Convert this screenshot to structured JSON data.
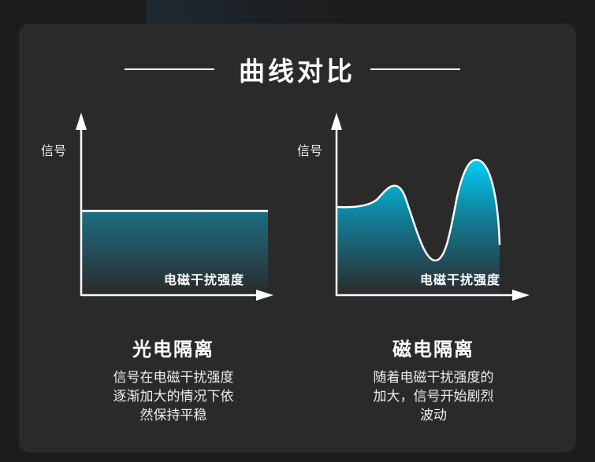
{
  "title": "曲线对比",
  "colors": {
    "background": "#1c1c1c",
    "card": "#2a2a2a",
    "accent": "#00c8f0",
    "fill_dark": "#2a2a2a",
    "line": "#ffffff"
  },
  "left": {
    "y_label": "信号",
    "x_label": "电磁干扰强度",
    "heading": "光电隔离",
    "description": [
      "信号在电磁干扰强度",
      "逐渐加大的情况下依",
      "然保持平稳"
    ]
  },
  "right": {
    "y_label": "信号",
    "x_label": "电磁干扰强度",
    "heading": "磁电隔离",
    "description": [
      "随着电磁干扰强度的",
      "加大，信号开始剧烈",
      "波动"
    ]
  }
}
